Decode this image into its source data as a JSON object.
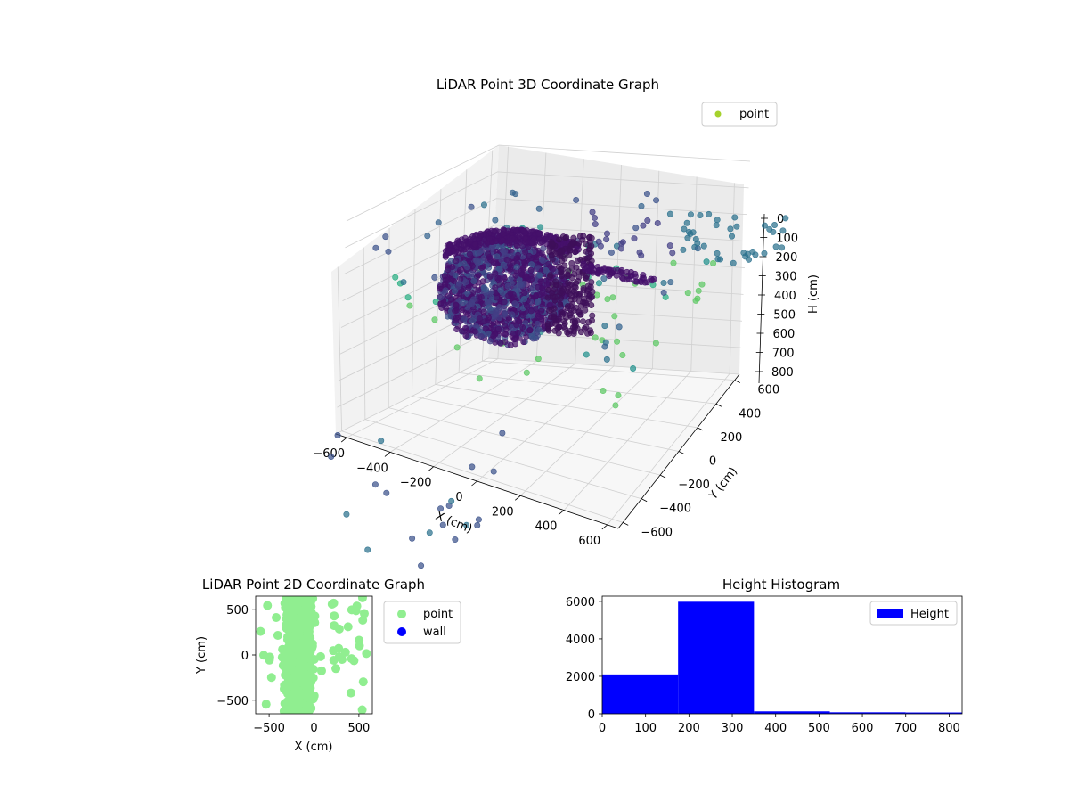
{
  "chart_data": [
    {
      "type": "scatter",
      "projection": "3d",
      "title": "LiDAR Point 3D Coordinate Graph",
      "xlabel": "X (cm)",
      "ylabel": "Y (cm)",
      "zlabel": "H (cm)",
      "xticks": [
        "−600",
        "−400",
        "−200",
        "0",
        "200",
        "400",
        "600"
      ],
      "yticks": [
        "−600",
        "−400",
        "−200",
        "0",
        "200",
        "400",
        "600"
      ],
      "zticks": [
        "0",
        "100",
        "200",
        "300",
        "400",
        "500",
        "600",
        "700",
        "800"
      ],
      "xlim": [
        -650,
        650
      ],
      "ylim": [
        -650,
        650
      ],
      "zlim": [
        0,
        800
      ],
      "z_inverted": true,
      "grid": true,
      "legend": {
        "placement": "upper-right",
        "entries": [
          {
            "name": "point",
            "color": "#a5d22c"
          }
        ]
      },
      "colormap": "viridis"
    },
    {
      "type": "scatter",
      "title": "LiDAR Point 2D Coordinate Graph",
      "xlabel": "X (cm)",
      "ylabel": "Y (cm)",
      "xticks": [
        "−500",
        "0",
        "500"
      ],
      "yticks": [
        "−500",
        "0",
        "500"
      ],
      "xlim": [
        -650,
        650
      ],
      "ylim": [
        -650,
        650
      ],
      "legend": {
        "placement": "outside-right",
        "entries": [
          {
            "name": "point",
            "color": "#90ee90"
          },
          {
            "name": "wall",
            "color": "#0000ff"
          }
        ]
      }
    },
    {
      "type": "bar",
      "title": "Height Histogram",
      "bin_edges": [
        0,
        175,
        350,
        525,
        700,
        875
      ],
      "values": [
        2100,
        5980,
        130,
        80,
        70
      ],
      "xticks": [
        "0",
        "100",
        "200",
        "300",
        "400",
        "500",
        "600",
        "700",
        "800"
      ],
      "yticks": [
        "0",
        "2000",
        "4000",
        "6000"
      ],
      "xlim": [
        0,
        830
      ],
      "ylim": [
        0,
        6280
      ],
      "color": "#0000ff",
      "legend": {
        "placement": "upper-right",
        "entries": [
          {
            "name": "Height",
            "color": "#0000ff"
          }
        ]
      }
    }
  ]
}
